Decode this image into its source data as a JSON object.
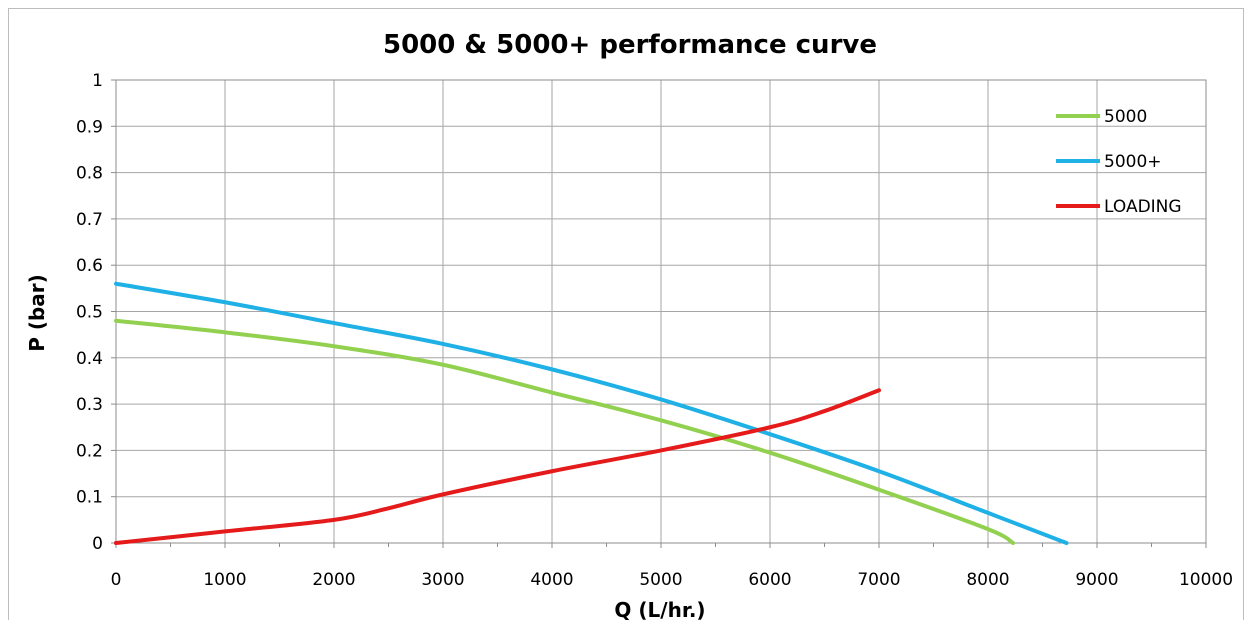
{
  "chart_data": {
    "type": "line",
    "title": "5000 & 5000+ performance curve",
    "xlabel": "Q (L/hr.)",
    "ylabel": "P (bar)",
    "xlim": [
      0,
      10000
    ],
    "ylim": [
      0,
      1
    ],
    "x_ticks": [
      "0",
      "1000",
      "2000",
      "3000",
      "4000",
      "5000",
      "6000",
      "7000",
      "8000",
      "9000",
      "10000"
    ],
    "y_ticks": [
      "0",
      "0.1",
      "0.2",
      "0.3",
      "0.4",
      "0.5",
      "0.6",
      "0.7",
      "0.8",
      "0.9",
      "1"
    ],
    "grid": true,
    "legend_position": "top-right",
    "series": [
      {
        "name": "5000",
        "color": "#92d050",
        "points": [
          [
            0,
            0.48
          ],
          [
            1000,
            0.455
          ],
          [
            2000,
            0.425
          ],
          [
            3000,
            0.385
          ],
          [
            4000,
            0.325
          ],
          [
            5000,
            0.265
          ],
          [
            6000,
            0.195
          ],
          [
            7000,
            0.115
          ],
          [
            8000,
            0.03
          ],
          [
            8230,
            0.0
          ]
        ]
      },
      {
        "name": "5000+",
        "color": "#1fb0e6",
        "points": [
          [
            0,
            0.56
          ],
          [
            1000,
            0.52
          ],
          [
            2000,
            0.475
          ],
          [
            3000,
            0.43
          ],
          [
            4000,
            0.375
          ],
          [
            5000,
            0.31
          ],
          [
            6000,
            0.235
          ],
          [
            7000,
            0.155
          ],
          [
            8000,
            0.065
          ],
          [
            8720,
            0.0
          ]
        ]
      },
      {
        "name": "LOADING",
        "color": "#e51a1a",
        "points": [
          [
            0,
            0.0
          ],
          [
            1000,
            0.025
          ],
          [
            2000,
            0.05
          ],
          [
            2500,
            0.075
          ],
          [
            3000,
            0.105
          ],
          [
            4000,
            0.155
          ],
          [
            5000,
            0.2
          ],
          [
            6000,
            0.25
          ],
          [
            6500,
            0.285
          ],
          [
            7000,
            0.33
          ]
        ]
      }
    ]
  }
}
